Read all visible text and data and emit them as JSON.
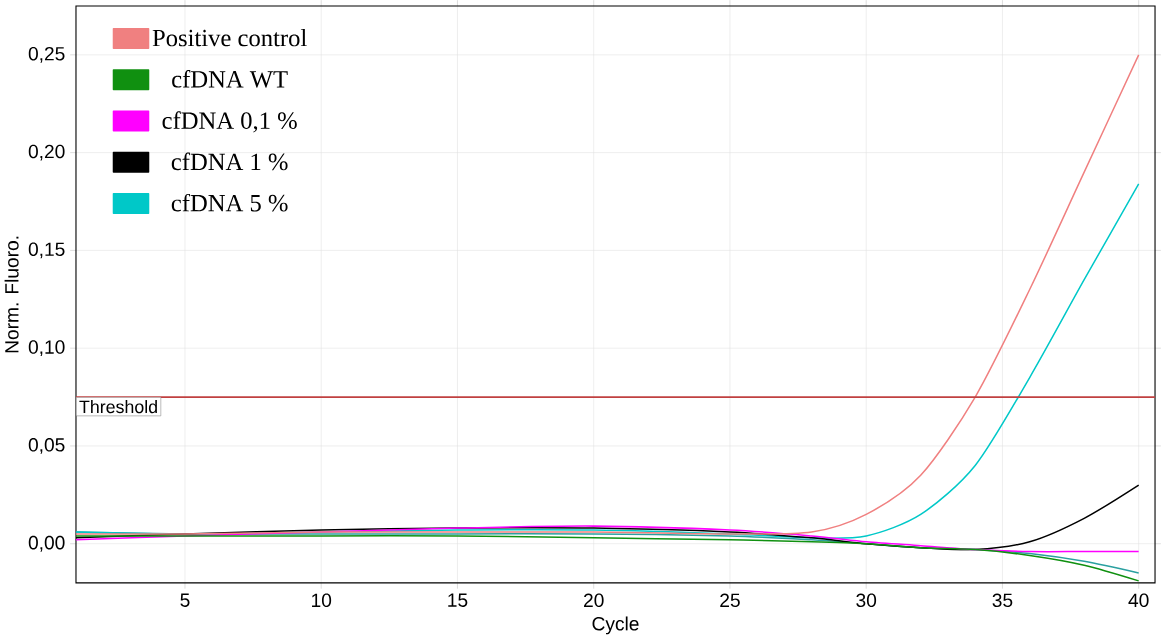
{
  "chart_data": {
    "type": "line",
    "xlabel": "Cycle",
    "ylabel": "Norm. Fluoro.",
    "x": [
      1,
      5,
      10,
      15,
      20,
      25,
      28,
      30,
      32,
      34,
      36,
      38,
      40
    ],
    "series": [
      {
        "name": "Positive control",
        "color": "#f08080",
        "values": [
          0.005,
          0.005,
          0.006,
          0.006,
          0.006,
          0.005,
          0.006,
          0.015,
          0.035,
          0.075,
          0.13,
          0.19,
          0.25
        ]
      },
      {
        "name": "cfDNA WT",
        "color": "#109010",
        "values": [
          0.004,
          0.004,
          0.004,
          0.004,
          0.003,
          0.002,
          0.001,
          0.0,
          -0.002,
          -0.003,
          -0.006,
          -0.011,
          -0.019
        ]
      },
      {
        "name": "cfDNA 0,1 %",
        "color": "#ff00ff",
        "values": [
          0.002,
          0.004,
          0.006,
          0.008,
          0.009,
          0.007,
          0.004,
          0.001,
          -0.001,
          -0.003,
          -0.004,
          -0.004,
          -0.004
        ]
      },
      {
        "name": "cfDNA 1 %",
        "color": "#000000",
        "values": [
          0.003,
          0.005,
          0.007,
          0.008,
          0.008,
          0.006,
          0.003,
          0.0,
          -0.002,
          -0.003,
          0.001,
          0.013,
          0.03
        ]
      },
      {
        "name": "cfDNA 5 %",
        "color": "#00c8c8",
        "values": [
          0.006,
          0.005,
          0.006,
          0.007,
          0.007,
          0.005,
          0.003,
          0.004,
          0.015,
          0.04,
          0.085,
          0.135,
          0.184
        ]
      },
      {
        "color": "#2aa0a0",
        "values": [
          0.006,
          0.005,
          0.005,
          0.005,
          0.005,
          0.004,
          0.002,
          0.0,
          -0.002,
          -0.003,
          -0.005,
          -0.009,
          -0.015
        ]
      }
    ],
    "xlim": [
      1,
      40.6
    ],
    "ylim": [
      -0.02,
      0.275
    ],
    "xticks": [
      5,
      10,
      15,
      20,
      25,
      30,
      35,
      40
    ],
    "yticks": [
      {
        "value": 0,
        "label": "0,00"
      },
      {
        "value": 0.05,
        "label": "0,05"
      },
      {
        "value": 0.1,
        "label": "0,10"
      },
      {
        "value": 0.15,
        "label": "0,15"
      },
      {
        "value": 0.2,
        "label": "0,20"
      },
      {
        "value": 0.25,
        "label": "0,25"
      }
    ],
    "ref_lines": [
      {
        "axis": "y",
        "value": 0.075,
        "label": "Threshold",
        "color": "#c04040"
      }
    ],
    "grid": true,
    "legend": "top left",
    "marker": "none",
    "line_style": "solid"
  }
}
